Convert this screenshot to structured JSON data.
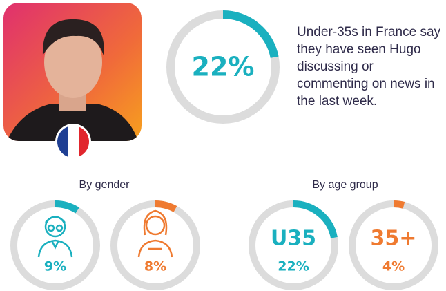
{
  "headline": {
    "value": 22,
    "label": "22%",
    "color": "#1ab0bf",
    "text": "Under-35s in France say they have seen Hugo discussing or commenting on news in the last week."
  },
  "gender": {
    "title": "By gender",
    "items": [
      {
        "value": 9,
        "label": "9%",
        "color": "#1ab0bf"
      },
      {
        "value": 8,
        "label": "8%",
        "color": "#ef7a30"
      }
    ]
  },
  "age": {
    "title": "By age group",
    "items": [
      {
        "name": "U35",
        "value": 22,
        "label": "22%",
        "color": "#1ab0bf"
      },
      {
        "name": "35+",
        "value": 4,
        "label": "4%",
        "color": "#ef7a30"
      }
    ]
  }
}
